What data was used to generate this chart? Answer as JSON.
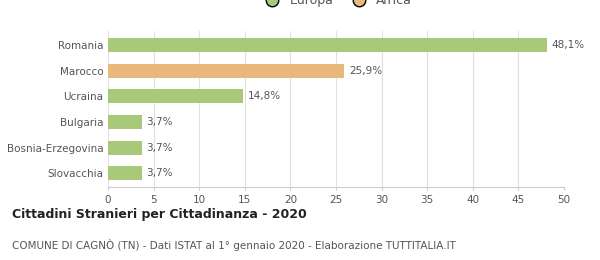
{
  "categories": [
    "Romania",
    "Marocco",
    "Ucraina",
    "Bulgaria",
    "Bosnia-Erzegovina",
    "Slovacchia"
  ],
  "values": [
    48.1,
    25.9,
    14.8,
    3.7,
    3.7,
    3.7
  ],
  "labels": [
    "48,1%",
    "25,9%",
    "14,8%",
    "3,7%",
    "3,7%",
    "3,7%"
  ],
  "colors": [
    "#a8c87a",
    "#e8b87c",
    "#a8c87a",
    "#a8c87a",
    "#a8c87a",
    "#a8c87a"
  ],
  "legend": [
    {
      "label": "Europa",
      "color": "#a8c87a"
    },
    {
      "label": "Africa",
      "color": "#e8b87c"
    }
  ],
  "xlim": [
    0,
    50
  ],
  "xticks": [
    0,
    5,
    10,
    15,
    20,
    25,
    30,
    35,
    40,
    45,
    50
  ],
  "title": "Cittadini Stranieri per Cittadinanza - 2020",
  "subtitle": "COMUNE DI CAGNÒ (TN) - Dati ISTAT al 1° gennaio 2020 - Elaborazione TUTTITALIA.IT",
  "title_fontsize": 9,
  "subtitle_fontsize": 7.5,
  "label_fontsize": 7.5,
  "tick_fontsize": 7.5,
  "legend_fontsize": 9,
  "background_color": "#ffffff",
  "bar_height": 0.55,
  "grid_color": "#e0e0e0",
  "text_color": "#555555",
  "title_color": "#222222"
}
